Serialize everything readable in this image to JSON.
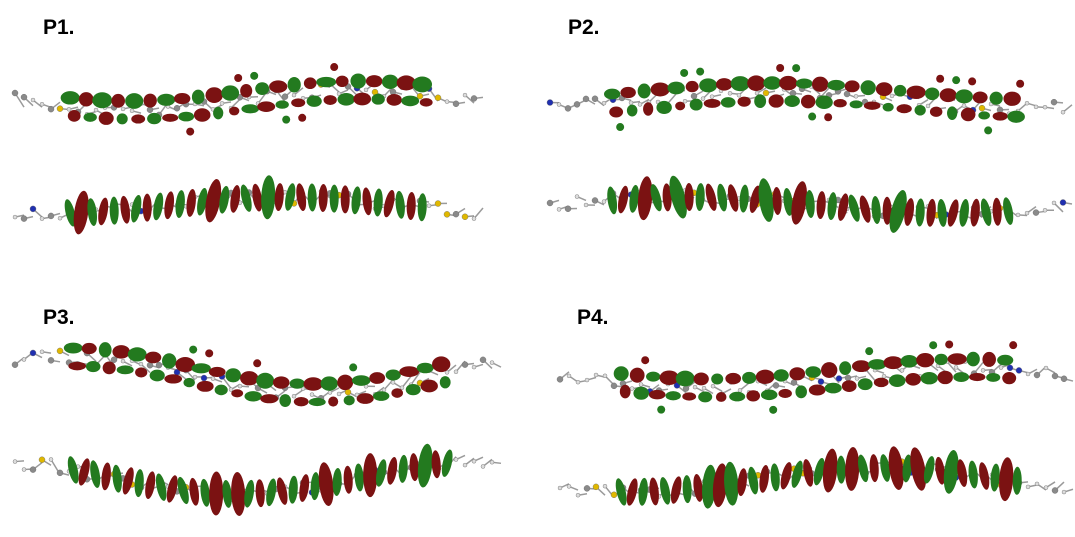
{
  "panels": [
    {
      "label": "P1."
    },
    {
      "label": "P2."
    },
    {
      "label": "P3."
    },
    {
      "label": "P4."
    }
  ]
}
